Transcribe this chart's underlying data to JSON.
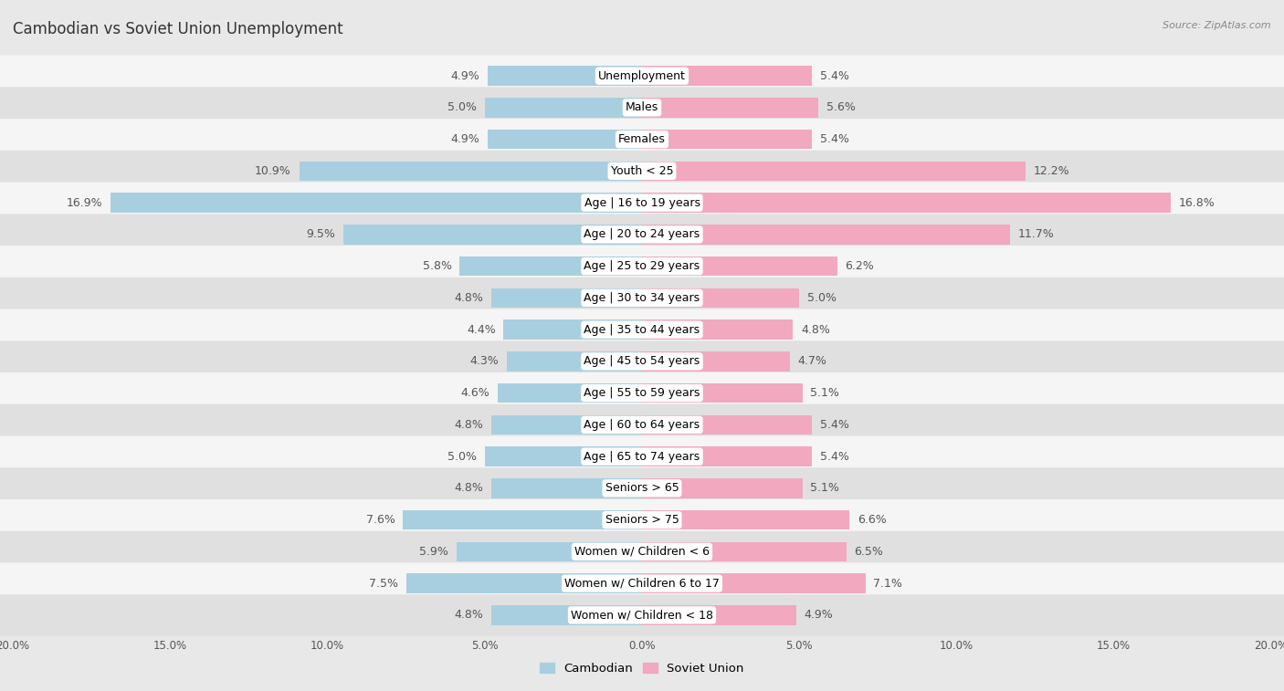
{
  "title": "Cambodian vs Soviet Union Unemployment",
  "source": "Source: ZipAtlas.com",
  "categories": [
    "Unemployment",
    "Males",
    "Females",
    "Youth < 25",
    "Age | 16 to 19 years",
    "Age | 20 to 24 years",
    "Age | 25 to 29 years",
    "Age | 30 to 34 years",
    "Age | 35 to 44 years",
    "Age | 45 to 54 years",
    "Age | 55 to 59 years",
    "Age | 60 to 64 years",
    "Age | 65 to 74 years",
    "Seniors > 65",
    "Seniors > 75",
    "Women w/ Children < 6",
    "Women w/ Children 6 to 17",
    "Women w/ Children < 18"
  ],
  "cambodian": [
    4.9,
    5.0,
    4.9,
    10.9,
    16.9,
    9.5,
    5.8,
    4.8,
    4.4,
    4.3,
    4.6,
    4.8,
    5.0,
    4.8,
    7.6,
    5.9,
    7.5,
    4.8
  ],
  "soviet_union": [
    5.4,
    5.6,
    5.4,
    12.2,
    16.8,
    11.7,
    6.2,
    5.0,
    4.8,
    4.7,
    5.1,
    5.4,
    5.4,
    5.1,
    6.6,
    6.5,
    7.1,
    4.9
  ],
  "cambodian_color": "#a8cfe0",
  "soviet_union_color": "#f2a8bf",
  "background_color": "#e8e8e8",
  "row_light": "#f5f5f5",
  "row_dark": "#e0e0e0",
  "xlim": 20.0,
  "bar_height": 0.62,
  "label_fontsize": 9.0,
  "title_fontsize": 12,
  "axis_label_fontsize": 8.5
}
